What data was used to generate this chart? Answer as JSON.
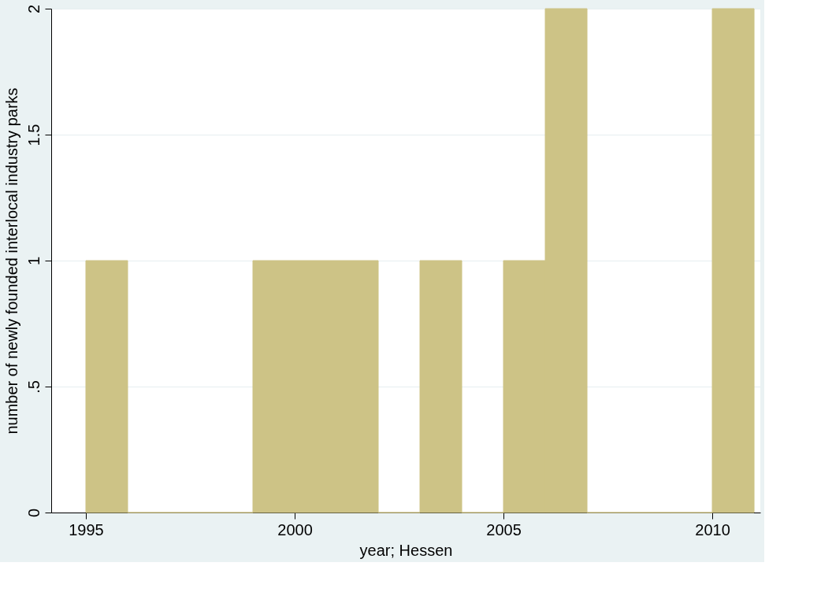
{
  "chart_data": {
    "type": "histogram",
    "xlabel": "year; Hessen",
    "ylabel": "number of newly founded interlocal industry parks",
    "bins": [
      1995,
      1996,
      1997,
      1998,
      1999,
      2000,
      2001,
      2002,
      2003,
      2004,
      2005,
      2006,
      2007,
      2008,
      2009,
      2010,
      2011
    ],
    "values": [
      1,
      0,
      0,
      0,
      1,
      1,
      1,
      0,
      1,
      0,
      1,
      2,
      0,
      0,
      0,
      2
    ],
    "color": "#cdc386",
    "xlim": [
      1994.17,
      2011.15
    ],
    "xticks": [
      1995,
      2000,
      2005,
      2010
    ],
    "ylim": [
      0,
      2
    ],
    "yticks": [
      0,
      {
        "value": 0.5,
        "label": ".5"
      },
      1,
      {
        "value": 1.5,
        "label": "1.5"
      },
      2
    ],
    "grid": "y"
  }
}
